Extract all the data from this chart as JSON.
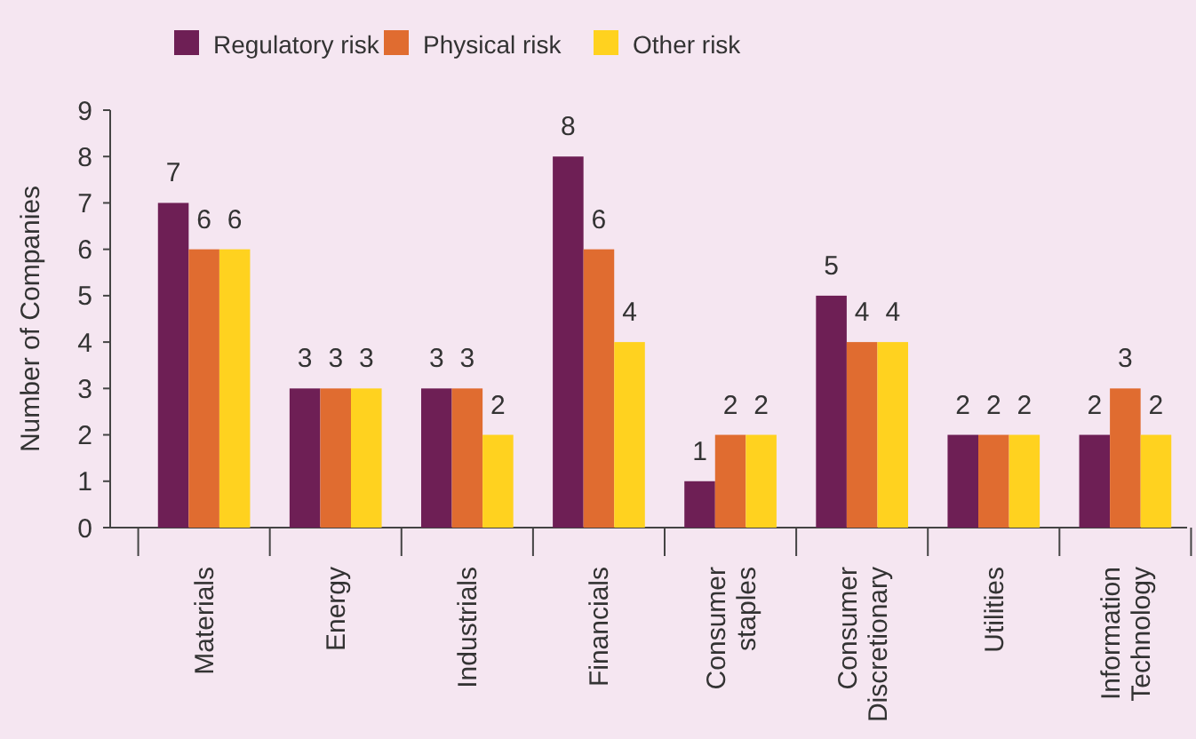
{
  "chart_data": {
    "type": "bar",
    "ylabel": "Number of Companies",
    "categories": [
      "Materials",
      "Energy",
      "Industrials",
      "Financials",
      "Consumer staples",
      "Consumer Discretionary",
      "Utilities",
      "Information Technology"
    ],
    "series": [
      {
        "name": "Regulatory risk",
        "color": "#6e1f55",
        "values": [
          7,
          3,
          3,
          8,
          1,
          5,
          2,
          2
        ]
      },
      {
        "name": "Physical risk",
        "color": "#e06c30",
        "values": [
          6,
          3,
          3,
          6,
          2,
          4,
          2,
          3
        ]
      },
      {
        "name": "Other risk",
        "color": "#ffd21f",
        "values": [
          6,
          3,
          2,
          4,
          2,
          4,
          2,
          2
        ]
      }
    ],
    "ylim": [
      0,
      9
    ],
    "yticks": [
      0,
      1,
      2,
      3,
      4,
      5,
      6,
      7,
      8,
      9
    ],
    "data_labels": true,
    "legend": "top",
    "grid": false
  }
}
